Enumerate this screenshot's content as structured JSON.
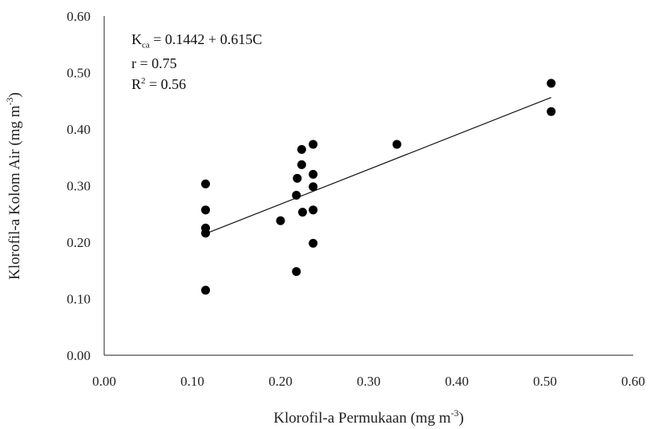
{
  "chart_data": {
    "type": "scatter",
    "title": "",
    "xlabel": {
      "text": "Klorofil-a Permukaan (mg m",
      "sup": "-3",
      "tail": ")"
    },
    "ylabel": {
      "text": "Klorofil-a Kolom Air (mg m",
      "sup": "-3",
      "tail": ")"
    },
    "xlim": [
      0,
      0.6
    ],
    "ylim": [
      0,
      0.6
    ],
    "x_ticks": [
      "0.00",
      "0.10",
      "0.20",
      "0.30",
      "0.40",
      "0.50",
      "0.60"
    ],
    "y_ticks": [
      "0.00",
      "0.10",
      "0.20",
      "0.30",
      "0.40",
      "0.50",
      "0.60"
    ],
    "grid": false,
    "points": [
      {
        "x": 0.115,
        "y": 0.303
      },
      {
        "x": 0.115,
        "y": 0.257
      },
      {
        "x": 0.115,
        "y": 0.225
      },
      {
        "x": 0.115,
        "y": 0.216
      },
      {
        "x": 0.115,
        "y": 0.115
      },
      {
        "x": 0.2,
        "y": 0.238
      },
      {
        "x": 0.218,
        "y": 0.148
      },
      {
        "x": 0.218,
        "y": 0.283
      },
      {
        "x": 0.219,
        "y": 0.313
      },
      {
        "x": 0.224,
        "y": 0.364
      },
      {
        "x": 0.224,
        "y": 0.337
      },
      {
        "x": 0.225,
        "y": 0.253
      },
      {
        "x": 0.237,
        "y": 0.373
      },
      {
        "x": 0.237,
        "y": 0.32
      },
      {
        "x": 0.237,
        "y": 0.298
      },
      {
        "x": 0.237,
        "y": 0.257
      },
      {
        "x": 0.237,
        "y": 0.198
      },
      {
        "x": 0.332,
        "y": 0.373
      },
      {
        "x": 0.507,
        "y": 0.481
      },
      {
        "x": 0.507,
        "y": 0.431
      }
    ],
    "trendline": {
      "intercept": 0.1442,
      "slope": 0.615,
      "x_range": [
        0.115,
        0.507
      ]
    },
    "annotations": {
      "equation_prefix": "K",
      "equation_sub": "ca",
      "equation_rest": " = 0.1442 + 0.615C",
      "r_text": "r = 0.75",
      "r2_prefix": "R",
      "r2_sup": "2",
      "r2_rest": " = 0.56"
    }
  }
}
